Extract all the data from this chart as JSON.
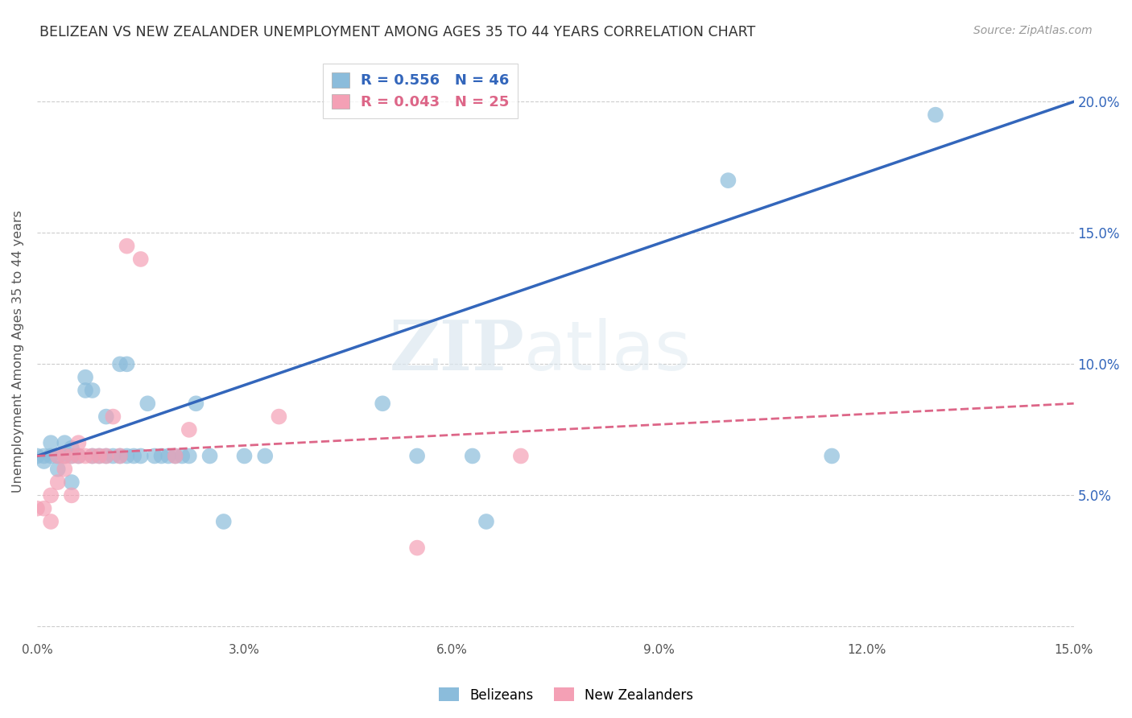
{
  "title": "BELIZEAN VS NEW ZEALANDER UNEMPLOYMENT AMONG AGES 35 TO 44 YEARS CORRELATION CHART",
  "source": "Source: ZipAtlas.com",
  "ylabel": "Unemployment Among Ages 35 to 44 years",
  "xlim": [
    0.0,
    0.15
  ],
  "ylim": [
    -0.005,
    0.215
  ],
  "xticks": [
    0.0,
    0.03,
    0.06,
    0.09,
    0.12,
    0.15
  ],
  "ytick_vals": [
    0.0,
    0.05,
    0.1,
    0.15,
    0.2
  ],
  "ytick_labels_right": [
    "",
    "5.0%",
    "10.0%",
    "15.0%",
    "20.0%"
  ],
  "ytick_vals_right": [
    0.0,
    0.05,
    0.1,
    0.15,
    0.2
  ],
  "xtick_labels": [
    "0.0%",
    "3.0%",
    "6.0%",
    "9.0%",
    "12.0%",
    "15.0%"
  ],
  "blue_R": 0.556,
  "blue_N": 46,
  "pink_R": 0.043,
  "pink_N": 25,
  "blue_color": "#8BBCDB",
  "pink_color": "#F4A0B5",
  "blue_line_color": "#3366BB",
  "pink_line_color": "#DD6688",
  "background_color": "#ffffff",
  "grid_color": "#cccccc",
  "watermark_zip": "ZIP",
  "watermark_atlas": "atlas",
  "blue_line_y0": 0.065,
  "blue_line_y1": 0.2,
  "pink_line_y0": 0.065,
  "pink_line_y1": 0.085,
  "blue_x": [
    0.0,
    0.001,
    0.001,
    0.002,
    0.002,
    0.003,
    0.003,
    0.004,
    0.004,
    0.005,
    0.005,
    0.005,
    0.006,
    0.007,
    0.007,
    0.008,
    0.008,
    0.009,
    0.01,
    0.01,
    0.011,
    0.012,
    0.012,
    0.013,
    0.013,
    0.014,
    0.015,
    0.016,
    0.017,
    0.018,
    0.019,
    0.02,
    0.021,
    0.022,
    0.023,
    0.025,
    0.027,
    0.03,
    0.033,
    0.05,
    0.055,
    0.063,
    0.065,
    0.1,
    0.115,
    0.13
  ],
  "blue_y": [
    0.065,
    0.065,
    0.063,
    0.07,
    0.065,
    0.065,
    0.06,
    0.07,
    0.065,
    0.065,
    0.068,
    0.055,
    0.065,
    0.09,
    0.095,
    0.065,
    0.09,
    0.065,
    0.08,
    0.065,
    0.065,
    0.065,
    0.1,
    0.065,
    0.1,
    0.065,
    0.065,
    0.085,
    0.065,
    0.065,
    0.065,
    0.065,
    0.065,
    0.065,
    0.085,
    0.065,
    0.04,
    0.065,
    0.065,
    0.085,
    0.065,
    0.065,
    0.04,
    0.17,
    0.065,
    0.195
  ],
  "pink_x": [
    0.0,
    0.001,
    0.002,
    0.002,
    0.003,
    0.003,
    0.004,
    0.004,
    0.005,
    0.005,
    0.006,
    0.006,
    0.007,
    0.008,
    0.009,
    0.01,
    0.011,
    0.012,
    0.013,
    0.015,
    0.02,
    0.022,
    0.035,
    0.055,
    0.07
  ],
  "pink_y": [
    0.045,
    0.045,
    0.04,
    0.05,
    0.055,
    0.065,
    0.06,
    0.065,
    0.065,
    0.05,
    0.065,
    0.07,
    0.065,
    0.065,
    0.065,
    0.065,
    0.08,
    0.065,
    0.145,
    0.14,
    0.065,
    0.075,
    0.08,
    0.03,
    0.065
  ]
}
